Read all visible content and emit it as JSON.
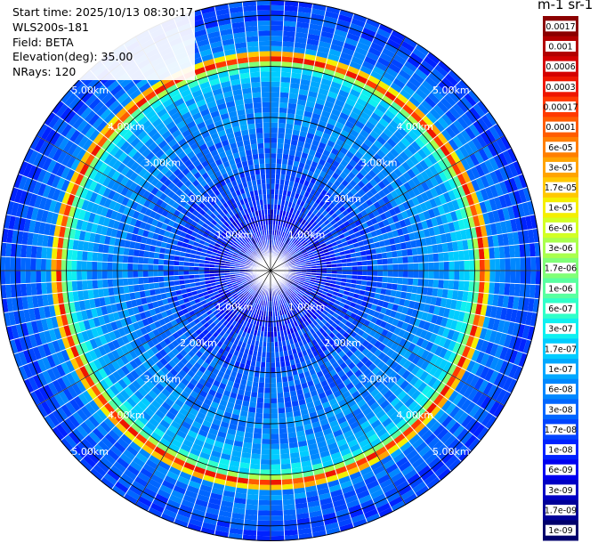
{
  "info": {
    "start_time": "Start time: 2025/10/13 08:30:17",
    "instrument": "WLS200s-181",
    "field": "Field: BETA",
    "elevation": "Elevation(deg): 35.00",
    "nrays": "NRays: 120"
  },
  "chart_data": {
    "type": "heatmap",
    "projection": "polar-ppi",
    "nrays": 120,
    "max_range_km": 5.3,
    "range_rings_km": [
      1,
      2,
      3,
      4,
      5
    ],
    "range_ring_labels": [
      "1.00km",
      "2.00km",
      "3.00km",
      "4.00km",
      "5.00km"
    ],
    "colorbar_title": "m-1 sr-1",
    "colorbar_levels": [
      "0.0017",
      "0.001",
      "0.0006",
      "0.0003",
      "0.00017",
      "0.0001",
      "6e-05",
      "3e-05",
      "1.7e-05",
      "1e-05",
      "6e-06",
      "3e-06",
      "1.7e-06",
      "1e-06",
      "6e-07",
      "3e-07",
      "1.7e-07",
      "1e-07",
      "6e-08",
      "3e-08",
      "1.7e-08",
      "1e-08",
      "6e-09",
      "3e-09",
      "1.7e-09",
      "1e-09"
    ],
    "colorbar_colors": [
      "#8b0000",
      "#b20000",
      "#d40000",
      "#ee1600",
      "#ff3a00",
      "#ff5c00",
      "#ff7f00",
      "#ffa400",
      "#ffc800",
      "#f4ef00",
      "#d2ff24",
      "#a9ff4d",
      "#80ff77",
      "#59ffa0",
      "#30ffc9",
      "#0ff0f0",
      "#00ccff",
      "#00a8ff",
      "#0088ff",
      "#0066ff",
      "#0044ff",
      "#0022ff",
      "#0000f0",
      "#0000c4",
      "#000098",
      "#00006c"
    ],
    "profile": [
      {
        "range_km": 0.0,
        "level": 22
      },
      {
        "range_km": 1.0,
        "level": 21
      },
      {
        "range_km": 1.6,
        "level": 20
      },
      {
        "range_km": 2.4,
        "level": 19
      },
      {
        "range_km": 3.2,
        "level": 18
      },
      {
        "range_km": 3.7,
        "level": 17
      },
      {
        "range_km": 3.9,
        "level": 16
      },
      {
        "range_km": 4.05,
        "level": 12
      },
      {
        "range_km": 4.1,
        "level": 8
      },
      {
        "range_km": 4.15,
        "level": 4
      },
      {
        "range_km": 4.25,
        "level": 8
      },
      {
        "range_km": 4.35,
        "level": 18
      },
      {
        "range_km": 4.6,
        "level": 19
      },
      {
        "range_km": 5.3,
        "level": 20
      }
    ]
  }
}
